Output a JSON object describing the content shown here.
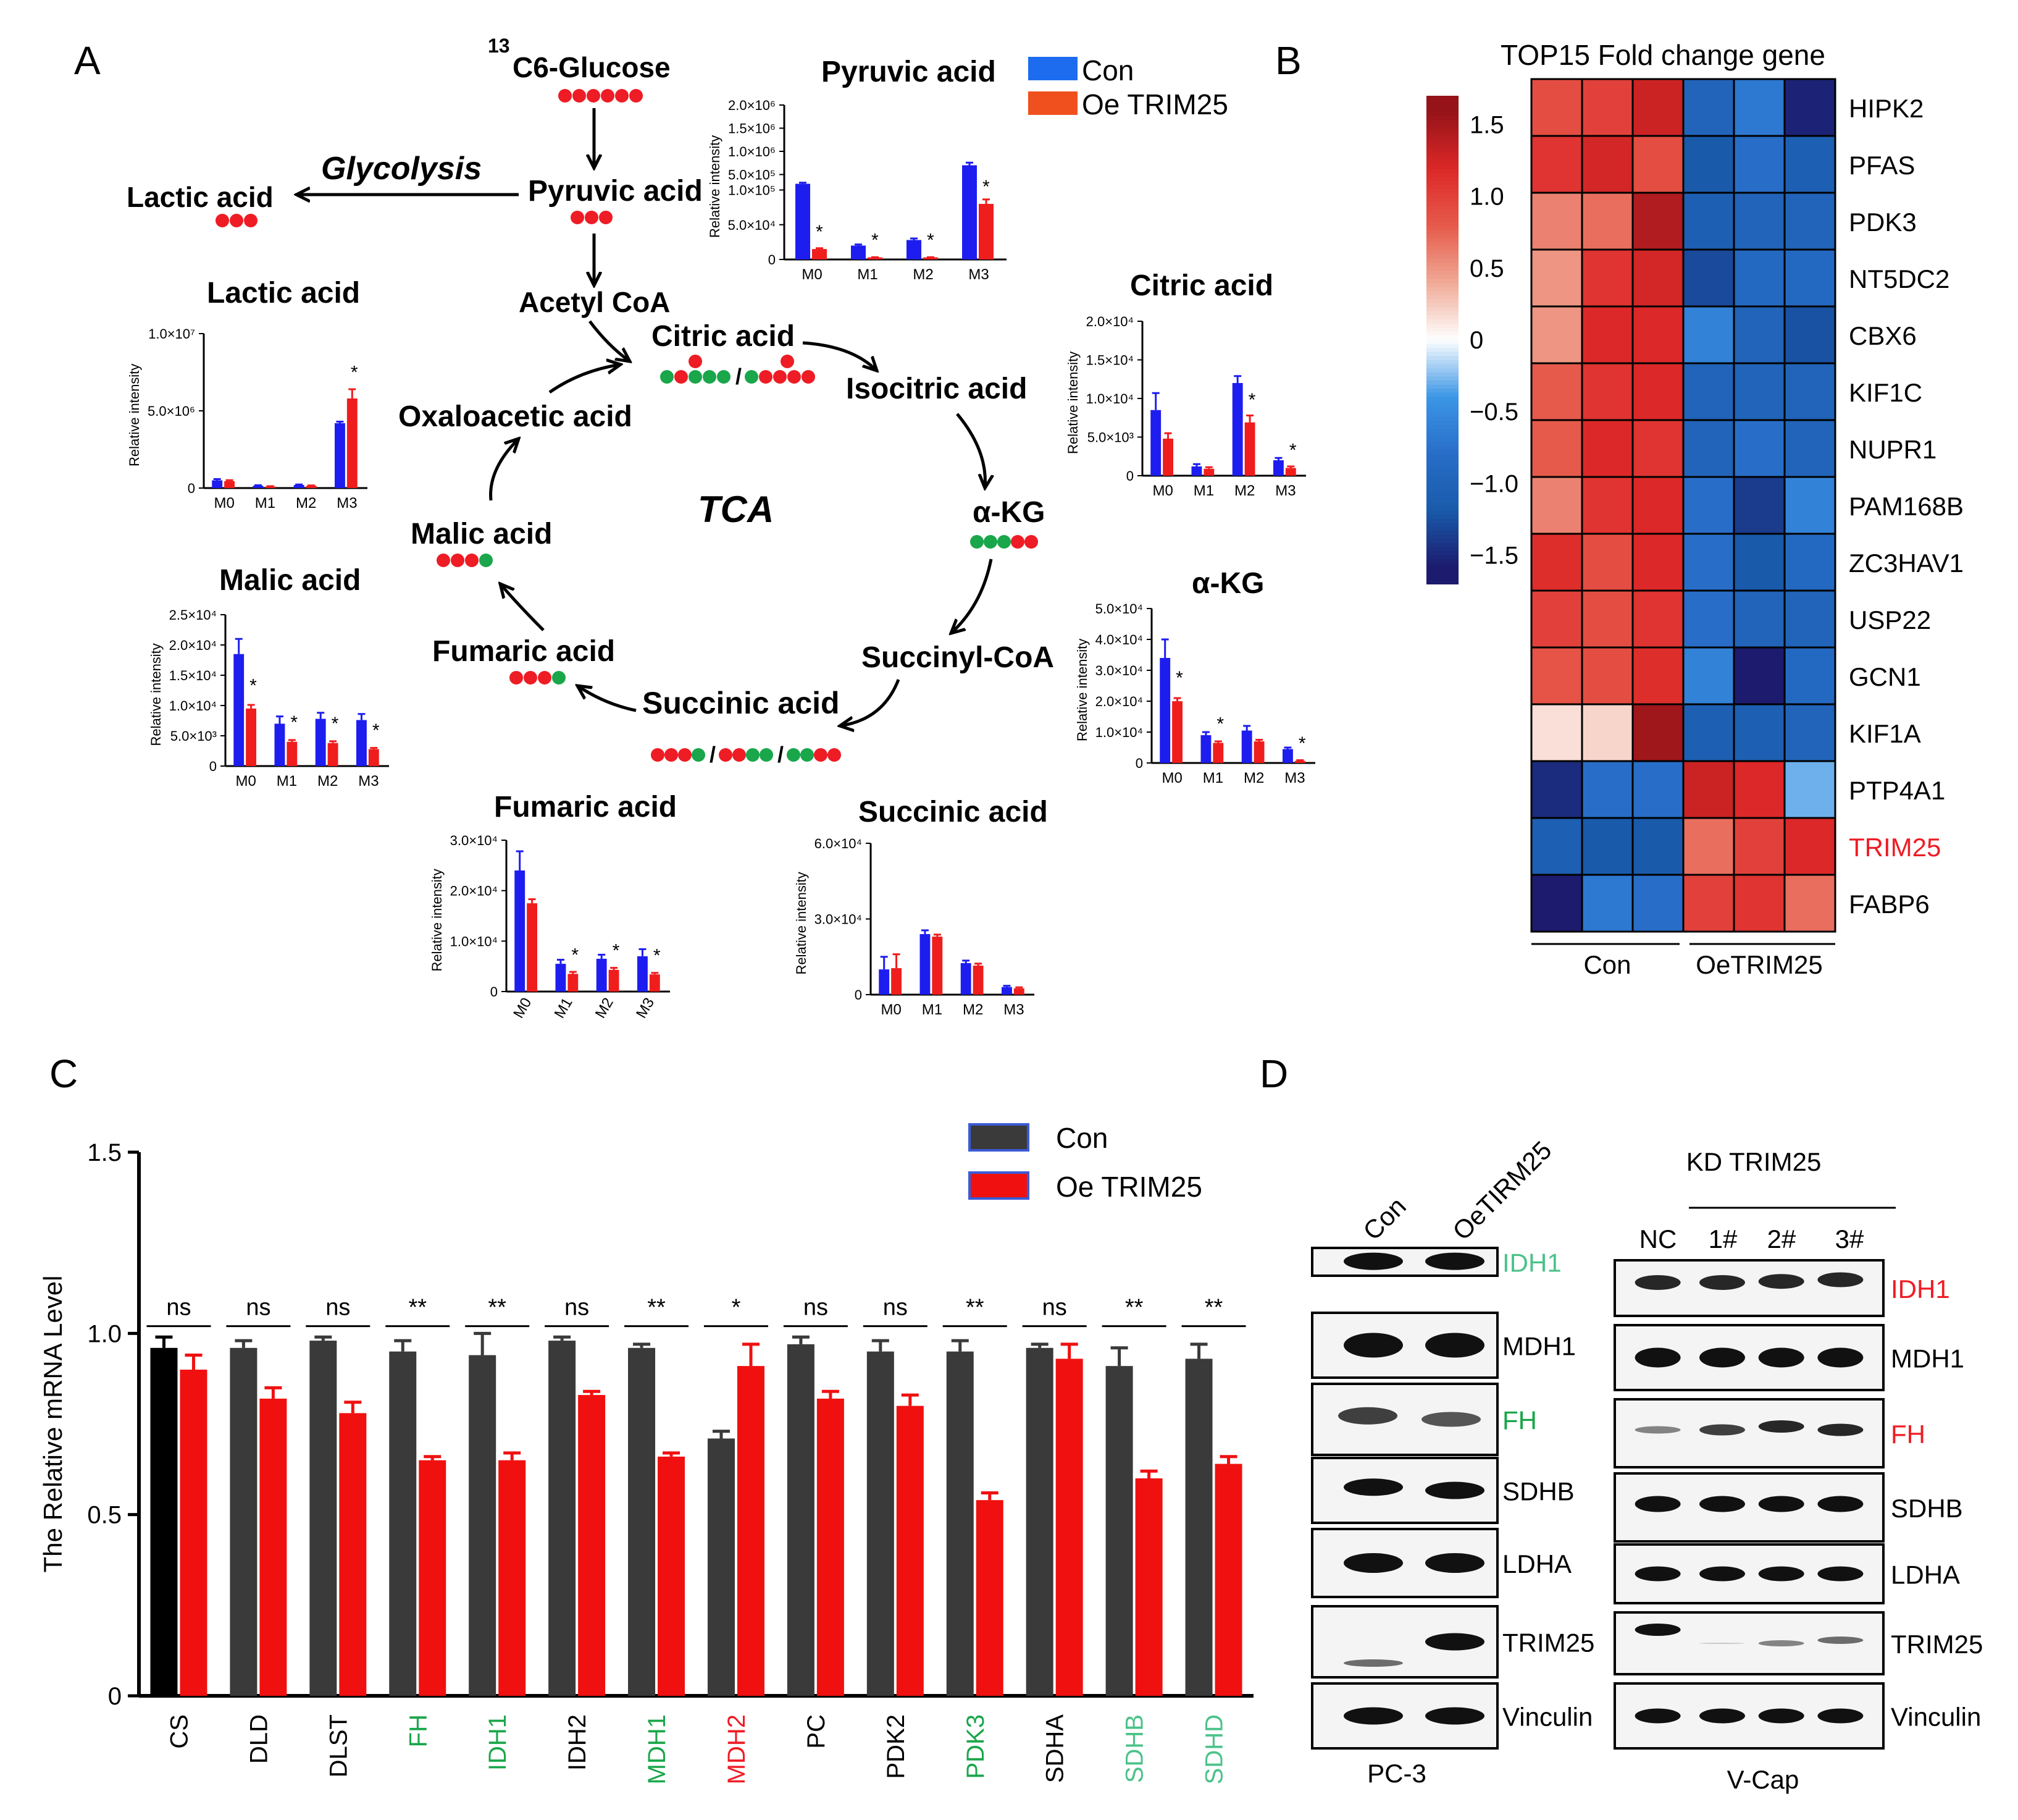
{
  "panelA": {
    "letter": "A",
    "glucose_label": "C6-Glucose",
    "glucose_sup": "13",
    "glucose_sub": "6",
    "glycolysis": "Glycolysis",
    "pathway_labels": {
      "lactic": "Lactic acid",
      "pyruvic": "Pyruvic acid",
      "acetylcoa": "Acetyl CoA",
      "citric": "Citric acid",
      "isocitric": "Isocitric acid",
      "oxaloacetic": "Oxaloacetic acid",
      "tca": "TCA",
      "akg": "α-KG",
      "malic": "Malic acid",
      "succinylcoa": "Succinyl-CoA",
      "fumaric": "Fumaric acid",
      "succinic": "Succinic acid"
    },
    "legend": {
      "con": "Con",
      "oe": "Oe TRIM25"
    },
    "colors": {
      "con": "#1d1df0",
      "oe": "#f01d1d",
      "red_dot": "#ee1c24",
      "green_dot": "#1aa64a"
    },
    "ylabel": "Relative intensity",
    "mini_charts": [
      {
        "id": "pyruvic",
        "title": "Pyruvic acid",
        "categories": [
          "M0",
          "M1",
          "M2",
          "M3"
        ],
        "broken": true,
        "ticks_low": [
          "0",
          "5.0×10⁴",
          "1.0×10⁵"
        ],
        "ticks_high": [
          "5.0×10⁵",
          "1.0×10⁶",
          "1.5×10⁶",
          "2.0×10⁶"
        ],
        "series": [
          {
            "name": "Con",
            "values": [
              300000,
              20000,
              28000,
              700000
            ]
          },
          {
            "name": "Oe TRIM25",
            "values": [
              15000,
              3000,
              3000,
              80000
            ]
          }
        ],
        "sig": [
          "*",
          "*",
          "*",
          "*"
        ]
      },
      {
        "id": "lactic",
        "title": "Lactic acid",
        "categories": [
          "M0",
          "M1",
          "M2",
          "M3"
        ],
        "max": 10000000,
        "ticks": [
          "0",
          "5.0×10⁶",
          "1.0×10⁷"
        ],
        "series": [
          {
            "name": "Con",
            "values": [
              500000,
              150000,
              200000,
              4200000
            ]
          },
          {
            "name": "Oe TRIM25",
            "values": [
              450000,
              100000,
              150000,
              5800000
            ]
          }
        ],
        "err": [
          [
            80000,
            30000,
            30000,
            100000
          ],
          [
            60000,
            20000,
            20000,
            600000
          ]
        ],
        "sig": [
          "",
          "",
          "",
          "*"
        ]
      },
      {
        "id": "citric",
        "title": "Citric acid",
        "categories": [
          "M0",
          "M1",
          "M2",
          "M3"
        ],
        "max": 20000,
        "ticks": [
          "0",
          "5.0×10³",
          "1.0×10⁴",
          "1.5×10⁴",
          "2.0×10⁴"
        ],
        "series": [
          {
            "name": "Con",
            "values": [
              8500,
              1200,
              12000,
              2000
            ]
          },
          {
            "name": "Oe TRIM25",
            "values": [
              4800,
              900,
              6900,
              1000
            ]
          }
        ],
        "err": [
          [
            2200,
            300,
            900,
            300
          ],
          [
            700,
            200,
            900,
            200
          ]
        ],
        "sig": [
          "",
          "",
          "*",
          "*"
        ]
      },
      {
        "id": "malic",
        "title": "Malic acid",
        "categories": [
          "M0",
          "M1",
          "M2",
          "M3"
        ],
        "max": 25000,
        "ticks": [
          "0",
          "5.0×10³",
          "1.0×10⁴",
          "1.5×10⁴",
          "2.0×10⁴",
          "2.5×10⁴"
        ],
        "series": [
          {
            "name": "Con",
            "values": [
              18500,
              7000,
              7800,
              7600
            ]
          },
          {
            "name": "Oe TRIM25",
            "values": [
              9500,
              4000,
              3800,
              2800
            ]
          }
        ],
        "err": [
          [
            2500,
            1200,
            1000,
            1000
          ],
          [
            600,
            300,
            300,
            200
          ]
        ],
        "sig": [
          "*",
          "*",
          "*",
          "*"
        ]
      },
      {
        "id": "akg",
        "title": "α-KG",
        "categories": [
          "M0",
          "M1",
          "M2",
          "M3"
        ],
        "max": 50000,
        "ticks": [
          "0",
          "1.0×10⁴",
          "2.0×10⁴",
          "3.0×10⁴",
          "4.0×10⁴",
          "5.0×10⁴"
        ],
        "series": [
          {
            "name": "Con",
            "values": [
              34000,
              9000,
              10500,
              4500
            ]
          },
          {
            "name": "Oe TRIM25",
            "values": [
              20000,
              6500,
              7000,
              700
            ]
          }
        ],
        "err": [
          [
            6000,
            1000,
            1500,
            500
          ],
          [
            1000,
            500,
            500,
            200
          ]
        ],
        "sig": [
          "*",
          "*",
          "",
          ""
        ],
        "sig_extra": "*"
      },
      {
        "id": "fumaric",
        "title": "Fumaric acid",
        "categories": [
          "M0",
          "M1",
          "M2",
          "M3"
        ],
        "max": 30000,
        "rotated": true,
        "ticks": [
          "0",
          "1.0×10⁴",
          "2.0×10⁴",
          "3.0×10⁴"
        ],
        "series": [
          {
            "name": "Con",
            "values": [
              24000,
              5500,
              6500,
              7000
            ]
          },
          {
            "name": "Oe TRIM25",
            "values": [
              17500,
              3500,
              4300,
              3400
            ]
          }
        ],
        "err": [
          [
            3800,
            800,
            800,
            1400
          ],
          [
            800,
            400,
            400,
            300
          ]
        ],
        "sig": [
          "",
          "*",
          "*",
          "*"
        ]
      },
      {
        "id": "succinic",
        "title": "Succinic acid",
        "categories": [
          "M0",
          "M1",
          "M2",
          "M3"
        ],
        "max": 60000,
        "ticks": [
          "0",
          "3.0×10⁴",
          "6.0×10⁴"
        ],
        "series": [
          {
            "name": "Con",
            "values": [
              10000,
              24000,
              12500,
              3000
            ]
          },
          {
            "name": "Oe TRIM25",
            "values": [
              10500,
              23000,
              11500,
              2500
            ]
          }
        ],
        "err": [
          [
            5000,
            1500,
            1000,
            500
          ],
          [
            5500,
            800,
            800,
            400
          ]
        ],
        "sig": [
          "",
          "",
          "",
          ""
        ]
      }
    ]
  },
  "panelB": {
    "letter": "B",
    "title": "TOP15 Fold change gene",
    "scale_ticks": [
      "1.5",
      "1.0",
      "0.5",
      "0",
      "−0.5",
      "−1.0",
      "−1.5"
    ],
    "genes": [
      "HIPK2",
      "PFAS",
      "PDK3",
      "NT5DC2",
      "CBX6",
      "KIF1C",
      "NUPR1",
      "PAM168B",
      "ZC3HAV1",
      "USP22",
      "GCN1",
      "KIF1A",
      "PTP4A1",
      "TRIM25",
      "FABP6"
    ],
    "highlight_gene": "TRIM25",
    "highlight_color": "#ee1c24",
    "group_labels": [
      "Con",
      "OeTRIM25"
    ],
    "values": [
      [
        0.9,
        1.0,
        1.3,
        -1.0,
        -0.7,
        -1.55
      ],
      [
        1.1,
        1.25,
        0.9,
        -1.2,
        -0.8,
        -1.1
      ],
      [
        0.6,
        0.7,
        1.45,
        -1.1,
        -1.0,
        -1.0
      ],
      [
        0.5,
        1.1,
        1.25,
        -1.3,
        -0.9,
        -0.9
      ],
      [
        0.5,
        1.2,
        1.2,
        -0.6,
        -1.0,
        -1.25
      ],
      [
        0.8,
        1.1,
        1.2,
        -1.0,
        -1.0,
        -1.0
      ],
      [
        0.8,
        1.2,
        1.1,
        -1.0,
        -0.8,
        -1.0
      ],
      [
        0.6,
        1.1,
        1.2,
        -0.8,
        -1.4,
        -0.6
      ],
      [
        1.15,
        0.9,
        1.2,
        -0.8,
        -1.2,
        -0.9
      ],
      [
        1.0,
        0.9,
        1.1,
        -0.8,
        -1.0,
        -1.0
      ],
      [
        0.85,
        0.9,
        1.15,
        -0.6,
        -1.6,
        -0.9
      ],
      [
        0.15,
        0.2,
        1.55,
        -1.1,
        -1.1,
        -1.0
      ],
      [
        -1.5,
        -0.8,
        -0.8,
        1.3,
        1.2,
        -0.3
      ],
      [
        -1.1,
        -1.2,
        -1.2,
        0.7,
        1.0,
        1.2
      ],
      [
        -1.6,
        -0.7,
        -0.8,
        1.0,
        1.1,
        0.7
      ]
    ]
  },
  "panelC": {
    "letter": "C",
    "chart_data": {
      "type": "bar",
      "ylabel": "The Relative mRNA Level",
      "ylim": [
        0,
        1.5
      ],
      "yticks": [
        "0",
        "0.5",
        "1.0",
        "1.5"
      ],
      "categories": [
        "CS",
        "DLD",
        "DLST",
        "FH",
        "IDH1",
        "IDH2",
        "MDH1",
        "MDH2",
        "PC",
        "PDK2",
        "PDK3",
        "SDHA",
        "SDHB",
        "SDHD"
      ],
      "category_colors": [
        "#000000",
        "#000000",
        "#000000",
        "#1aa64a",
        "#1aa64a",
        "#000000",
        "#1aa64a",
        "#ee1c24",
        "#000000",
        "#000000",
        "#1aa64a",
        "#000000",
        "#4cc28a",
        "#4cc28a"
      ],
      "series": [
        {
          "name": "Con",
          "color": "#3a3a3a",
          "values": [
            0.96,
            0.96,
            0.98,
            0.95,
            0.94,
            0.98,
            0.96,
            0.71,
            0.97,
            0.95,
            0.95,
            0.96,
            0.91,
            0.93
          ]
        },
        {
          "name": "Oe TRIM25",
          "color": "#f01010",
          "values": [
            0.9,
            0.82,
            0.78,
            0.65,
            0.65,
            0.83,
            0.66,
            0.91,
            0.82,
            0.8,
            0.54,
            0.93,
            0.6,
            0.64
          ]
        }
      ],
      "errors": [
        [
          0.03,
          0.02,
          0.01,
          0.03,
          0.06,
          0.01,
          0.01,
          0.02,
          0.02,
          0.03,
          0.03,
          0.01,
          0.05,
          0.04
        ],
        [
          0.04,
          0.03,
          0.03,
          0.01,
          0.02,
          0.01,
          0.01,
          0.06,
          0.02,
          0.03,
          0.02,
          0.04,
          0.02,
          0.02
        ]
      ],
      "significance": [
        "ns",
        "ns",
        "ns",
        "**",
        "**",
        "ns",
        "**",
        "*",
        "ns",
        "ns",
        "**",
        "ns",
        "**",
        "**"
      ],
      "legend": [
        "Con",
        "Oe TRIM25"
      ]
    }
  },
  "panelD": {
    "letter": "D",
    "left_lanes": [
      "Con",
      "OeTIRM25"
    ],
    "left_cell": "PC-3",
    "right_header": "KD TRIM25",
    "right_lanes": [
      "NC",
      "1#",
      "2#",
      "3#"
    ],
    "right_cell": "V-Cap",
    "left_labels": [
      {
        "text": "IDH1",
        "color": "#4cc28a"
      },
      {
        "text": "MDH1",
        "color": "#000000"
      },
      {
        "text": "FH",
        "color": "#1aa64a"
      },
      {
        "text": "SDHB",
        "color": "#000000"
      },
      {
        "text": "LDHA",
        "color": "#000000"
      },
      {
        "text": "TRIM25",
        "color": "#000000"
      },
      {
        "text": "Vinculin",
        "color": "#000000"
      }
    ],
    "right_labels": [
      {
        "text": "IDH1",
        "color": "#ee1c24"
      },
      {
        "text": "MDH1",
        "color": "#000000"
      },
      {
        "text": "FH",
        "color": "#ee1c24"
      },
      {
        "text": "SDHB",
        "color": "#000000"
      },
      {
        "text": "LDHA",
        "color": "#000000"
      },
      {
        "text": "TRIM25",
        "color": "#000000"
      },
      {
        "text": "Vinculin",
        "color": "#000000"
      }
    ]
  }
}
